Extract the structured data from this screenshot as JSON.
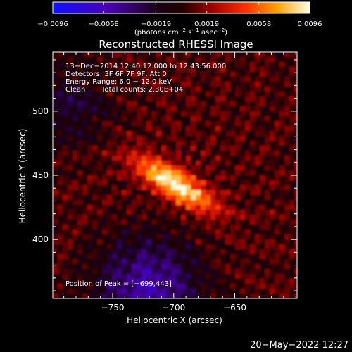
{
  "colorbar": {
    "ticks": [
      -0.0096,
      -0.0058,
      -0.0019,
      0.0019,
      0.0058,
      0.0096
    ],
    "tick_labels": [
      "−0.0096",
      "−0.0058",
      "−0.0019",
      "0.0019",
      "0.0058",
      "0.0096"
    ],
    "range": [
      -0.0096,
      0.0096
    ],
    "units_prefix": "(photons cm",
    "units_sup1": "−2",
    "units_mid1": " s",
    "units_sup2": "−1",
    "units_mid2": " asec",
    "units_sup3": "−2",
    "units_suffix": ")"
  },
  "chart_data": {
    "type": "heatmap",
    "title": "Reconstructed RHESSI Image",
    "xlabel": "Heliocentric X (arcsec)",
    "ylabel": "Heliocentric Y (arcsec)",
    "xlim": [
      -799,
      -599
    ],
    "ylim": [
      354,
      546
    ],
    "x_ticks": [
      -750,
      -700,
      -650
    ],
    "x_tick_labels": [
      "−750",
      "−700",
      "−650"
    ],
    "y_ticks": [
      400,
      450,
      500
    ],
    "y_tick_labels": [
      "400",
      "450",
      "500"
    ],
    "peak": [
      -699,
      443
    ],
    "colormap": "blue-purple-black-red-yellow-white",
    "annotations": {
      "time": "13−Dec−2014 12:40:12.000 to 12:43:56.000",
      "detectors": "Detectors: 3F 6F 7F 9F, Att 0",
      "energy": "Energy Range: 6.0 − 12.0 keV",
      "clean": "Clean",
      "counts": "Total counts: 2.30E+04",
      "peak_label": "Position of Peak = [−699,443]"
    }
  },
  "footer": {
    "timestamp": "20−May−2022 12:27"
  }
}
